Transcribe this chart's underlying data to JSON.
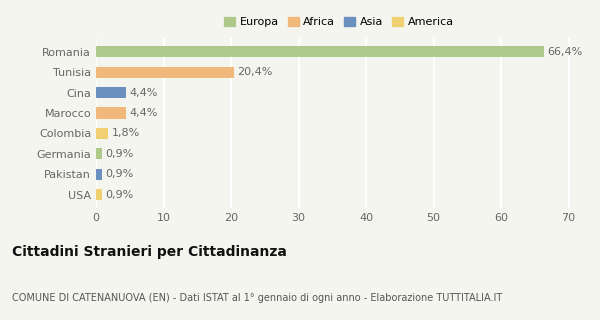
{
  "categories": [
    "Romania",
    "Tunisia",
    "Cina",
    "Marocco",
    "Colombia",
    "Germania",
    "Pakistan",
    "USA"
  ],
  "values": [
    66.4,
    20.4,
    4.4,
    4.4,
    1.8,
    0.9,
    0.9,
    0.9
  ],
  "labels": [
    "66,4%",
    "20,4%",
    "4,4%",
    "4,4%",
    "1,8%",
    "0,9%",
    "0,9%",
    "0,9%"
  ],
  "colors": [
    "#aec98a",
    "#f0b87a",
    "#6b8fbf",
    "#f0b87a",
    "#f0d070",
    "#aec98a",
    "#6b8fbf",
    "#f0d070"
  ],
  "legend_labels": [
    "Europa",
    "Africa",
    "Asia",
    "America"
  ],
  "legend_colors": [
    "#aec98a",
    "#f0b87a",
    "#6b8fbf",
    "#f0d070"
  ],
  "title": "Cittadini Stranieri per Cittadinanza",
  "subtitle": "COMUNE DI CATENANUOVA (EN) - Dati ISTAT al 1° gennaio di ogni anno - Elaborazione TUTTITALIA.IT",
  "xlabel_ticks": [
    0,
    10,
    20,
    30,
    40,
    50,
    60,
    70
  ],
  "xlim": [
    0,
    72
  ],
  "background_color": "#f5f5f0",
  "grid_color": "#ffffff",
  "bar_height": 0.55,
  "title_fontsize": 10,
  "subtitle_fontsize": 7,
  "label_fontsize": 8,
  "ytick_fontsize": 8,
  "xtick_fontsize": 8,
  "legend_fontsize": 8
}
